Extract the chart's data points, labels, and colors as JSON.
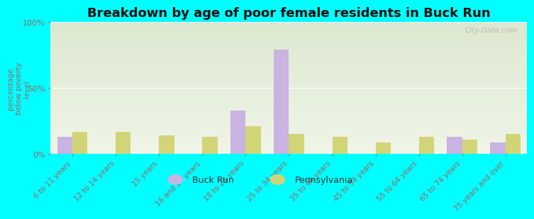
{
  "title": "Breakdown by age of poor female residents in Buck Run",
  "ylabel": "percentage\nbelow poverty\nlevel",
  "categories": [
    "6 to 11 years",
    "12 to 14 years",
    "15 years",
    "16 and 17 years",
    "18 to 24 years",
    "25 to 34 years",
    "35 to 44 years",
    "45 to 54 years",
    "55 to 64 years",
    "65 to 74 years",
    "75 years and over"
  ],
  "buck_run": [
    13,
    0,
    0,
    0,
    33,
    79,
    0,
    0,
    0,
    13,
    9
  ],
  "pennsylvania": [
    17,
    17,
    14,
    13,
    21,
    15,
    13,
    9,
    13,
    11,
    15
  ],
  "buck_run_color": "#c9b3e0",
  "pennsylvania_color": "#d2d478",
  "ylim": [
    0,
    100
  ],
  "yticks": [
    0,
    50,
    100
  ],
  "ytick_labels": [
    "0%",
    "50%",
    "100%"
  ],
  "background_color": "#00ffff",
  "plot_bg_top": "#dce8d0",
  "plot_bg_bottom": "#f0f5e8",
  "bar_width": 0.35,
  "title_fontsize": 13,
  "tick_color": "#996666",
  "legend_labels": [
    "Buck Run",
    "Pennsylvania"
  ],
  "watermark": "City-Data.com"
}
